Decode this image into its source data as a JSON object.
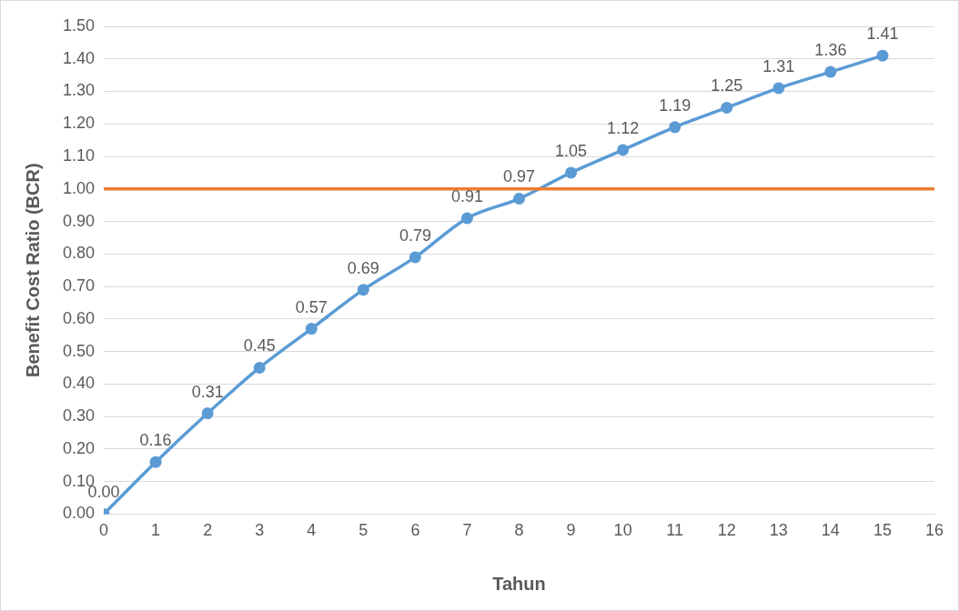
{
  "chart_data": {
    "type": "line",
    "xlabel": "Tahun",
    "ylabel": "Benefit Cost Ratio (BCR)",
    "x": [
      0,
      1,
      2,
      3,
      4,
      5,
      6,
      7,
      8,
      9,
      10,
      11,
      12,
      13,
      14,
      15
    ],
    "series": [
      {
        "color": "#5b9bd5",
        "values": [
          0,
          0.16,
          0.31,
          0.45,
          0.57,
          0.69,
          0.79,
          0.91,
          0.97,
          1.05,
          1.12,
          1.19,
          1.25,
          1.31,
          1.36,
          1.41
        ],
        "value_labels": [
          "0.00",
          "0.16",
          "0.31",
          "0.45",
          "0.57",
          "0.69",
          "0.79",
          "0.91",
          "0.97",
          "1.05",
          "1.12",
          "1.19",
          "1.25",
          "1.31",
          "1.36",
          "1.41"
        ]
      }
    ],
    "xlim": [
      0,
      16
    ],
    "xticks": [
      0,
      1,
      2,
      3,
      4,
      5,
      6,
      7,
      8,
      9,
      10,
      11,
      12,
      13,
      14,
      15,
      16
    ],
    "ylim": [
      0,
      1.5
    ],
    "yticks": [
      {
        "value": 0,
        "label": "0.00"
      },
      {
        "value": 0.1,
        "label": "0.10"
      },
      {
        "value": 0.2,
        "label": "0.20"
      },
      {
        "value": 0.3,
        "label": "0.30"
      },
      {
        "value": 0.4,
        "label": "0.40"
      },
      {
        "value": 0.5,
        "label": "0.50"
      },
      {
        "value": 0.6,
        "label": "0.60"
      },
      {
        "value": 0.7,
        "label": "0.70"
      },
      {
        "value": 0.8,
        "label": "0.80"
      },
      {
        "value": 0.9,
        "label": "0.90"
      },
      {
        "value": 1,
        "label": "1.00"
      },
      {
        "value": 1.1,
        "label": "1.10"
      },
      {
        "value": 1.2,
        "label": "1.20"
      },
      {
        "value": 1.3,
        "label": "1.30"
      },
      {
        "value": 1.4,
        "label": "1.40"
      },
      {
        "value": 1.5,
        "label": "1.50"
      }
    ],
    "ref_lines": [
      {
        "axis": "y",
        "value": 1,
        "color": "#ed7d31"
      }
    ],
    "grid": "y",
    "legend": false,
    "marker": "circle",
    "line_style": "solid"
  }
}
